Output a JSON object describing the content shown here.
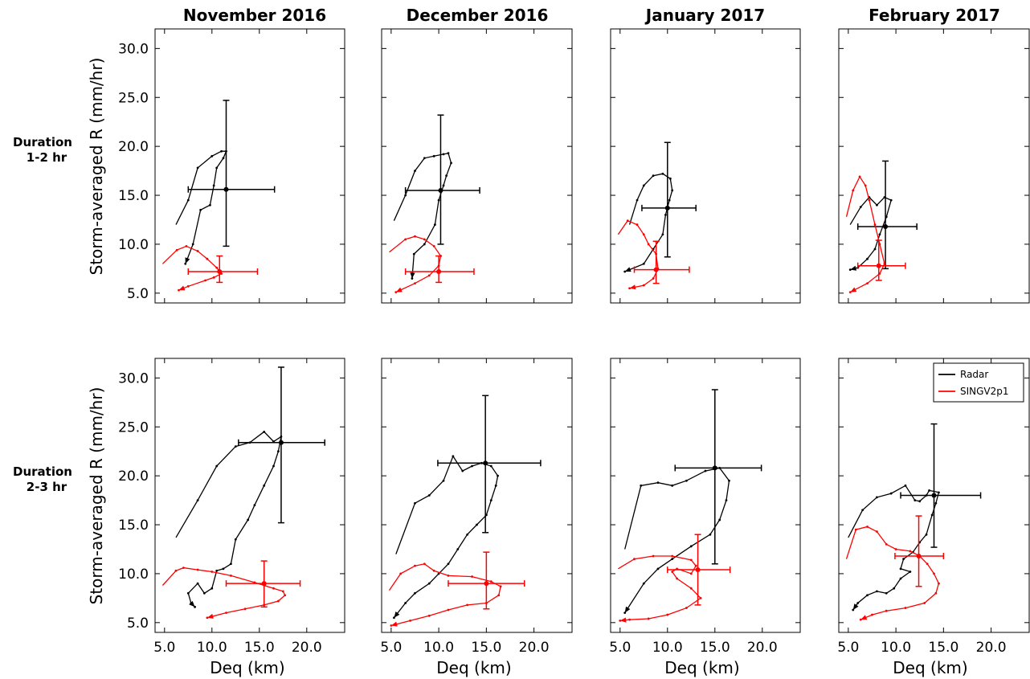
{
  "figure": {
    "columns": [
      "November 2016",
      "December 2016",
      "January 2017",
      "February 2017"
    ],
    "rows": [
      {
        "label_line1": "Duration",
        "label_line2": "1-2 hr",
        "ylabel": "Storm-averaged R (mm/hr)"
      },
      {
        "label_line1": "Duration",
        "label_line2": "2-3 hr",
        "ylabel": "Storm-averaged R (mm/hr)"
      }
    ],
    "xlabel": "Deq (km)",
    "colors": {
      "radar": "#000000",
      "model": "#ff0000"
    }
  },
  "chart_data": [
    {
      "type": "line",
      "title": "November 2016",
      "row": "Duration 1-2 hr",
      "xlabel": "",
      "ylabel": "Storm-averaged R (mm/hr)",
      "xlim": [
        4,
        24
      ],
      "ylim": [
        4,
        32
      ],
      "grid": false,
      "series": [
        {
          "name": "Radar",
          "color": "#000000",
          "x": [
            6.2,
            7.5,
            8.5,
            10.0,
            11.0,
            11.5,
            11.2,
            10.5,
            10.2,
            9.8,
            8.8,
            8.0,
            7.2
          ],
          "y": [
            12.0,
            14.5,
            17.8,
            19.0,
            19.5,
            19.5,
            18.8,
            17.8,
            16.0,
            14.0,
            13.5,
            10.0,
            8.0
          ],
          "mean": {
            "x": 11.5,
            "y": 15.6,
            "xerr": [
              7.5,
              16.6
            ],
            "yerr": [
              9.8,
              24.7
            ]
          }
        },
        {
          "name": "SINGV2p1",
          "color": "#ff0000",
          "x": [
            4.8,
            6.3,
            7.3,
            8.5,
            9.5,
            10.5,
            11.0,
            10.2,
            9.3,
            7.5,
            6.5
          ],
          "y": [
            8.0,
            9.4,
            9.8,
            9.3,
            8.5,
            7.6,
            7.0,
            6.6,
            6.3,
            5.7,
            5.3
          ],
          "mean": {
            "x": 10.8,
            "y": 7.2,
            "xerr": [
              7.5,
              14.8
            ],
            "yerr": [
              6.1,
              8.8
            ]
          }
        }
      ]
    },
    {
      "type": "line",
      "title": "December 2016",
      "row": "Duration 1-2 hr",
      "xlabel": "",
      "ylabel": "",
      "xlim": [
        4,
        24
      ],
      "ylim": [
        4,
        32
      ],
      "grid": false,
      "series": [
        {
          "name": "Radar",
          "color": "#000000",
          "x": [
            5.3,
            6.5,
            7.5,
            8.5,
            9.5,
            10.5,
            11.0,
            11.3,
            10.8,
            10.5,
            10.0,
            9.6,
            8.5,
            7.4,
            7.2
          ],
          "y": [
            12.4,
            15.0,
            17.5,
            18.8,
            19.0,
            19.2,
            19.3,
            18.3,
            17.0,
            16.0,
            14.5,
            12.0,
            10.0,
            9.0,
            6.5
          ],
          "mean": {
            "x": 10.2,
            "y": 15.5,
            "xerr": [
              6.5,
              14.3
            ],
            "yerr": [
              10.0,
              23.2
            ]
          }
        },
        {
          "name": "SINGV2p1",
          "color": "#ff0000",
          "x": [
            4.8,
            6.5,
            7.5,
            8.5,
            9.5,
            10.2,
            10.0,
            9.0,
            7.5,
            5.5
          ],
          "y": [
            9.2,
            10.5,
            10.8,
            10.5,
            9.8,
            8.8,
            7.8,
            6.8,
            6.0,
            5.1
          ],
          "mean": {
            "x": 10.0,
            "y": 7.2,
            "xerr": [
              6.5,
              13.7
            ],
            "yerr": [
              6.1,
              8.8
            ]
          }
        }
      ]
    },
    {
      "type": "line",
      "title": "January 2017",
      "row": "Duration 1-2 hr",
      "xlabel": "",
      "ylabel": "",
      "xlim": [
        4,
        24
      ],
      "ylim": [
        4,
        32
      ],
      "grid": false,
      "series": [
        {
          "name": "Radar",
          "color": "#000000",
          "x": [
            6.0,
            6.8,
            7.5,
            8.5,
            9.5,
            10.3,
            10.5,
            10.2,
            9.8,
            9.5,
            8.5,
            7.5,
            5.5
          ],
          "y": [
            12.0,
            14.5,
            16.0,
            17.0,
            17.2,
            16.7,
            15.5,
            14.5,
            13.0,
            11.0,
            9.5,
            8.0,
            7.2
          ],
          "mean": {
            "x": 10.0,
            "y": 13.7,
            "xerr": [
              7.3,
              13.0
            ],
            "yerr": [
              8.7,
              20.4
            ]
          }
        },
        {
          "name": "SINGV2p1",
          "color": "#ff0000",
          "x": [
            4.8,
            5.8,
            6.8,
            7.5,
            8.0,
            8.8,
            9.0,
            8.5,
            7.5,
            6.0
          ],
          "y": [
            11.0,
            12.4,
            12.0,
            11.0,
            10.0,
            9.0,
            7.5,
            6.5,
            5.8,
            5.5
          ],
          "mean": {
            "x": 8.8,
            "y": 7.4,
            "xerr": [
              6.5,
              12.3
            ],
            "yerr": [
              6.0,
              10.3
            ]
          }
        }
      ]
    },
    {
      "type": "line",
      "title": "February 2017",
      "row": "Duration 1-2 hr",
      "xlabel": "",
      "ylabel": "",
      "xlim": [
        4,
        24
      ],
      "ylim": [
        4,
        32
      ],
      "grid": false,
      "series": [
        {
          "name": "Radar",
          "color": "#000000",
          "x": [
            5.2,
            6.3,
            7.2,
            8.0,
            8.8,
            9.5,
            9.0,
            8.3,
            7.8,
            7.0,
            6.0,
            5.2
          ],
          "y": [
            12.0,
            13.8,
            14.8,
            14.0,
            14.8,
            14.5,
            12.8,
            11.0,
            9.5,
            8.5,
            7.6,
            7.4
          ],
          "mean": {
            "x": 8.9,
            "y": 11.8,
            "xerr": [
              6.0,
              12.2
            ],
            "yerr": [
              7.5,
              18.5
            ]
          }
        },
        {
          "name": "SINGV2p1",
          "color": "#ff0000",
          "x": [
            4.8,
            5.5,
            6.2,
            6.8,
            7.2,
            7.8,
            8.3,
            8.8,
            8.3,
            7.0,
            5.2
          ],
          "y": [
            12.8,
            15.5,
            16.9,
            16.0,
            14.5,
            12.0,
            10.0,
            8.0,
            7.0,
            6.0,
            5.1
          ],
          "mean": {
            "x": 8.2,
            "y": 7.8,
            "xerr": [
              6.0,
              11.0
            ],
            "yerr": [
              6.3,
              10.4
            ]
          }
        }
      ]
    },
    {
      "type": "line",
      "title": "November 2016",
      "row": "Duration 2-3 hr",
      "xlabel": "Deq (km)",
      "ylabel": "Storm-averaged R (mm/hr)",
      "xlim": [
        4,
        24
      ],
      "ylim": [
        4,
        32
      ],
      "grid": false,
      "series": [
        {
          "name": "Radar",
          "color": "#000000",
          "x": [
            6.2,
            8.5,
            10.5,
            12.5,
            14.0,
            15.5,
            16.5,
            17.3,
            17.0,
            16.5,
            15.5,
            14.5,
            13.8,
            12.5,
            12.0,
            11.2,
            10.5,
            10.0,
            9.2,
            8.5,
            7.5,
            7.8,
            8.2
          ],
          "y": [
            13.7,
            17.5,
            21.0,
            23.0,
            23.4,
            24.5,
            23.5,
            24.0,
            22.5,
            21.0,
            19.0,
            17.0,
            15.5,
            13.5,
            11.0,
            10.5,
            10.3,
            8.5,
            8.0,
            9.0,
            8.0,
            7.0,
            6.6
          ],
          "mean": {
            "x": 17.3,
            "y": 23.4,
            "xerr": [
              12.8,
              21.9
            ],
            "yerr": [
              15.2,
              31.1
            ]
          }
        },
        {
          "name": "SINGV2p1",
          "color": "#ff0000",
          "x": [
            4.8,
            6.2,
            7.0,
            8.5,
            10.0,
            12.0,
            14.5,
            16.5,
            17.5,
            17.7,
            17.0,
            15.5,
            13.5,
            11.5,
            9.5
          ],
          "y": [
            8.8,
            10.3,
            10.6,
            10.4,
            10.2,
            9.8,
            9.1,
            8.5,
            8.2,
            7.8,
            7.2,
            6.8,
            6.4,
            6.0,
            5.5
          ],
          "mean": {
            "x": 15.5,
            "y": 9.0,
            "xerr": [
              11.5,
              19.3
            ],
            "yerr": [
              6.6,
              11.3
            ]
          }
        }
      ]
    },
    {
      "type": "line",
      "title": "December 2016",
      "row": "Duration 2-3 hr",
      "xlabel": "Deq (km)",
      "ylabel": "",
      "xlim": [
        4,
        24
      ],
      "ylim": [
        4,
        32
      ],
      "grid": false,
      "series": [
        {
          "name": "Radar",
          "color": "#000000",
          "x": [
            5.5,
            7.5,
            9.0,
            10.5,
            11.5,
            12.5,
            13.5,
            14.5,
            15.5,
            16.2,
            16.0,
            15.5,
            15.0,
            14.0,
            13.0,
            12.0,
            11.0,
            10.0,
            9.0,
            7.5,
            6.5,
            5.3
          ],
          "y": [
            12.0,
            17.2,
            18.0,
            19.5,
            22.0,
            20.5,
            21.0,
            21.3,
            21.0,
            20.0,
            19.0,
            17.5,
            16.0,
            15.0,
            14.0,
            12.5,
            11.0,
            10.0,
            9.0,
            8.0,
            7.0,
            5.5
          ],
          "mean": {
            "x": 14.9,
            "y": 21.3,
            "xerr": [
              9.9,
              20.7
            ],
            "yerr": [
              14.2,
              28.2
            ]
          }
        },
        {
          "name": "SINGV2p1",
          "color": "#ff0000",
          "x": [
            4.8,
            6.0,
            7.5,
            8.5,
            9.5,
            11.0,
            13.5,
            15.5,
            16.5,
            16.3,
            15.0,
            13.0,
            11.0,
            9.0,
            7.0,
            5.0
          ],
          "y": [
            8.3,
            10.0,
            10.8,
            11.0,
            10.3,
            9.8,
            9.7,
            9.2,
            8.7,
            7.8,
            7.0,
            6.8,
            6.3,
            5.7,
            5.2,
            4.7
          ],
          "mean": {
            "x": 15.0,
            "y": 9.0,
            "xerr": [
              11.0,
              19.0
            ],
            "yerr": [
              6.4,
              12.2
            ]
          }
        }
      ]
    },
    {
      "type": "line",
      "title": "January 2017",
      "row": "Duration 2-3 hr",
      "xlabel": "Deq (km)",
      "ylabel": "",
      "xlim": [
        4,
        24
      ],
      "ylim": [
        4,
        32
      ],
      "grid": false,
      "series": [
        {
          "name": "Radar",
          "color": "#000000",
          "x": [
            5.5,
            7.2,
            9.0,
            10.5,
            12.0,
            14.0,
            15.5,
            16.5,
            16.2,
            15.5,
            14.5,
            12.5,
            10.5,
            9.0,
            7.5,
            5.5
          ],
          "y": [
            12.5,
            19.0,
            19.3,
            19.0,
            19.5,
            20.5,
            20.8,
            19.5,
            17.5,
            15.5,
            14.0,
            12.8,
            11.5,
            10.5,
            9.0,
            6.0
          ],
          "mean": {
            "x": 15.0,
            "y": 20.8,
            "xerr": [
              10.8,
              19.9
            ],
            "yerr": [
              11.0,
              28.8
            ]
          }
        },
        {
          "name": "SINGV2p1",
          "color": "#ff0000",
          "x": [
            4.8,
            6.5,
            8.5,
            10.5,
            12.5,
            13.0,
            12.5,
            11.0,
            10.5,
            11.0,
            12.5,
            13.5,
            12.0,
            10.0,
            8.0,
            6.0,
            5.0
          ],
          "y": [
            10.5,
            11.5,
            11.8,
            11.8,
            11.4,
            10.8,
            10.0,
            10.5,
            10.2,
            9.5,
            8.5,
            7.5,
            6.5,
            5.8,
            5.4,
            5.3,
            5.2
          ],
          "mean": {
            "x": 13.2,
            "y": 10.4,
            "xerr": [
              10.0,
              16.6
            ],
            "yerr": [
              6.8,
              14.0
            ]
          }
        }
      ]
    },
    {
      "type": "line",
      "title": "February 2017",
      "row": "Duration 2-3 hr",
      "xlabel": "Deq (km)",
      "ylabel": "",
      "xlim": [
        4,
        24
      ],
      "ylim": [
        4,
        32
      ],
      "grid": false,
      "series": [
        {
          "name": "Radar",
          "color": "#000000",
          "x": [
            5.0,
            6.5,
            8.0,
            9.5,
            11.0,
            12.0,
            12.5,
            13.2,
            13.5,
            14.5,
            14.2,
            13.8,
            13.2,
            12.5,
            11.8,
            10.8,
            10.5,
            11.5,
            10.5,
            9.8,
            9.0,
            8.0,
            7.0,
            6.0,
            5.5
          ],
          "y": [
            13.7,
            16.5,
            17.8,
            18.2,
            19.0,
            17.5,
            17.4,
            18.0,
            18.5,
            18.3,
            17.2,
            16.0,
            14.0,
            13.2,
            12.2,
            11.5,
            10.5,
            10.2,
            9.5,
            8.5,
            8.0,
            8.2,
            7.8,
            7.0,
            6.3
          ],
          "mean": {
            "x": 14.0,
            "y": 18.0,
            "xerr": [
              10.5,
              18.9
            ],
            "yerr": [
              12.7,
              25.3
            ]
          }
        },
        {
          "name": "SINGV2p1",
          "color": "#ff0000",
          "x": [
            4.8,
            5.8,
            7.0,
            8.0,
            9.0,
            10.0,
            11.5,
            12.5,
            13.3,
            14.0,
            14.5,
            14.2,
            13.0,
            11.0,
            9.0,
            7.5,
            6.3
          ],
          "y": [
            11.5,
            14.5,
            14.8,
            14.3,
            13.0,
            12.5,
            12.3,
            11.8,
            11.0,
            10.0,
            9.0,
            8.0,
            7.0,
            6.5,
            6.2,
            5.8,
            5.3
          ],
          "mean": {
            "x": 12.4,
            "y": 11.8,
            "xerr": [
              9.9,
              15.0
            ],
            "yerr": [
              8.7,
              15.9
            ]
          }
        }
      ]
    }
  ]
}
